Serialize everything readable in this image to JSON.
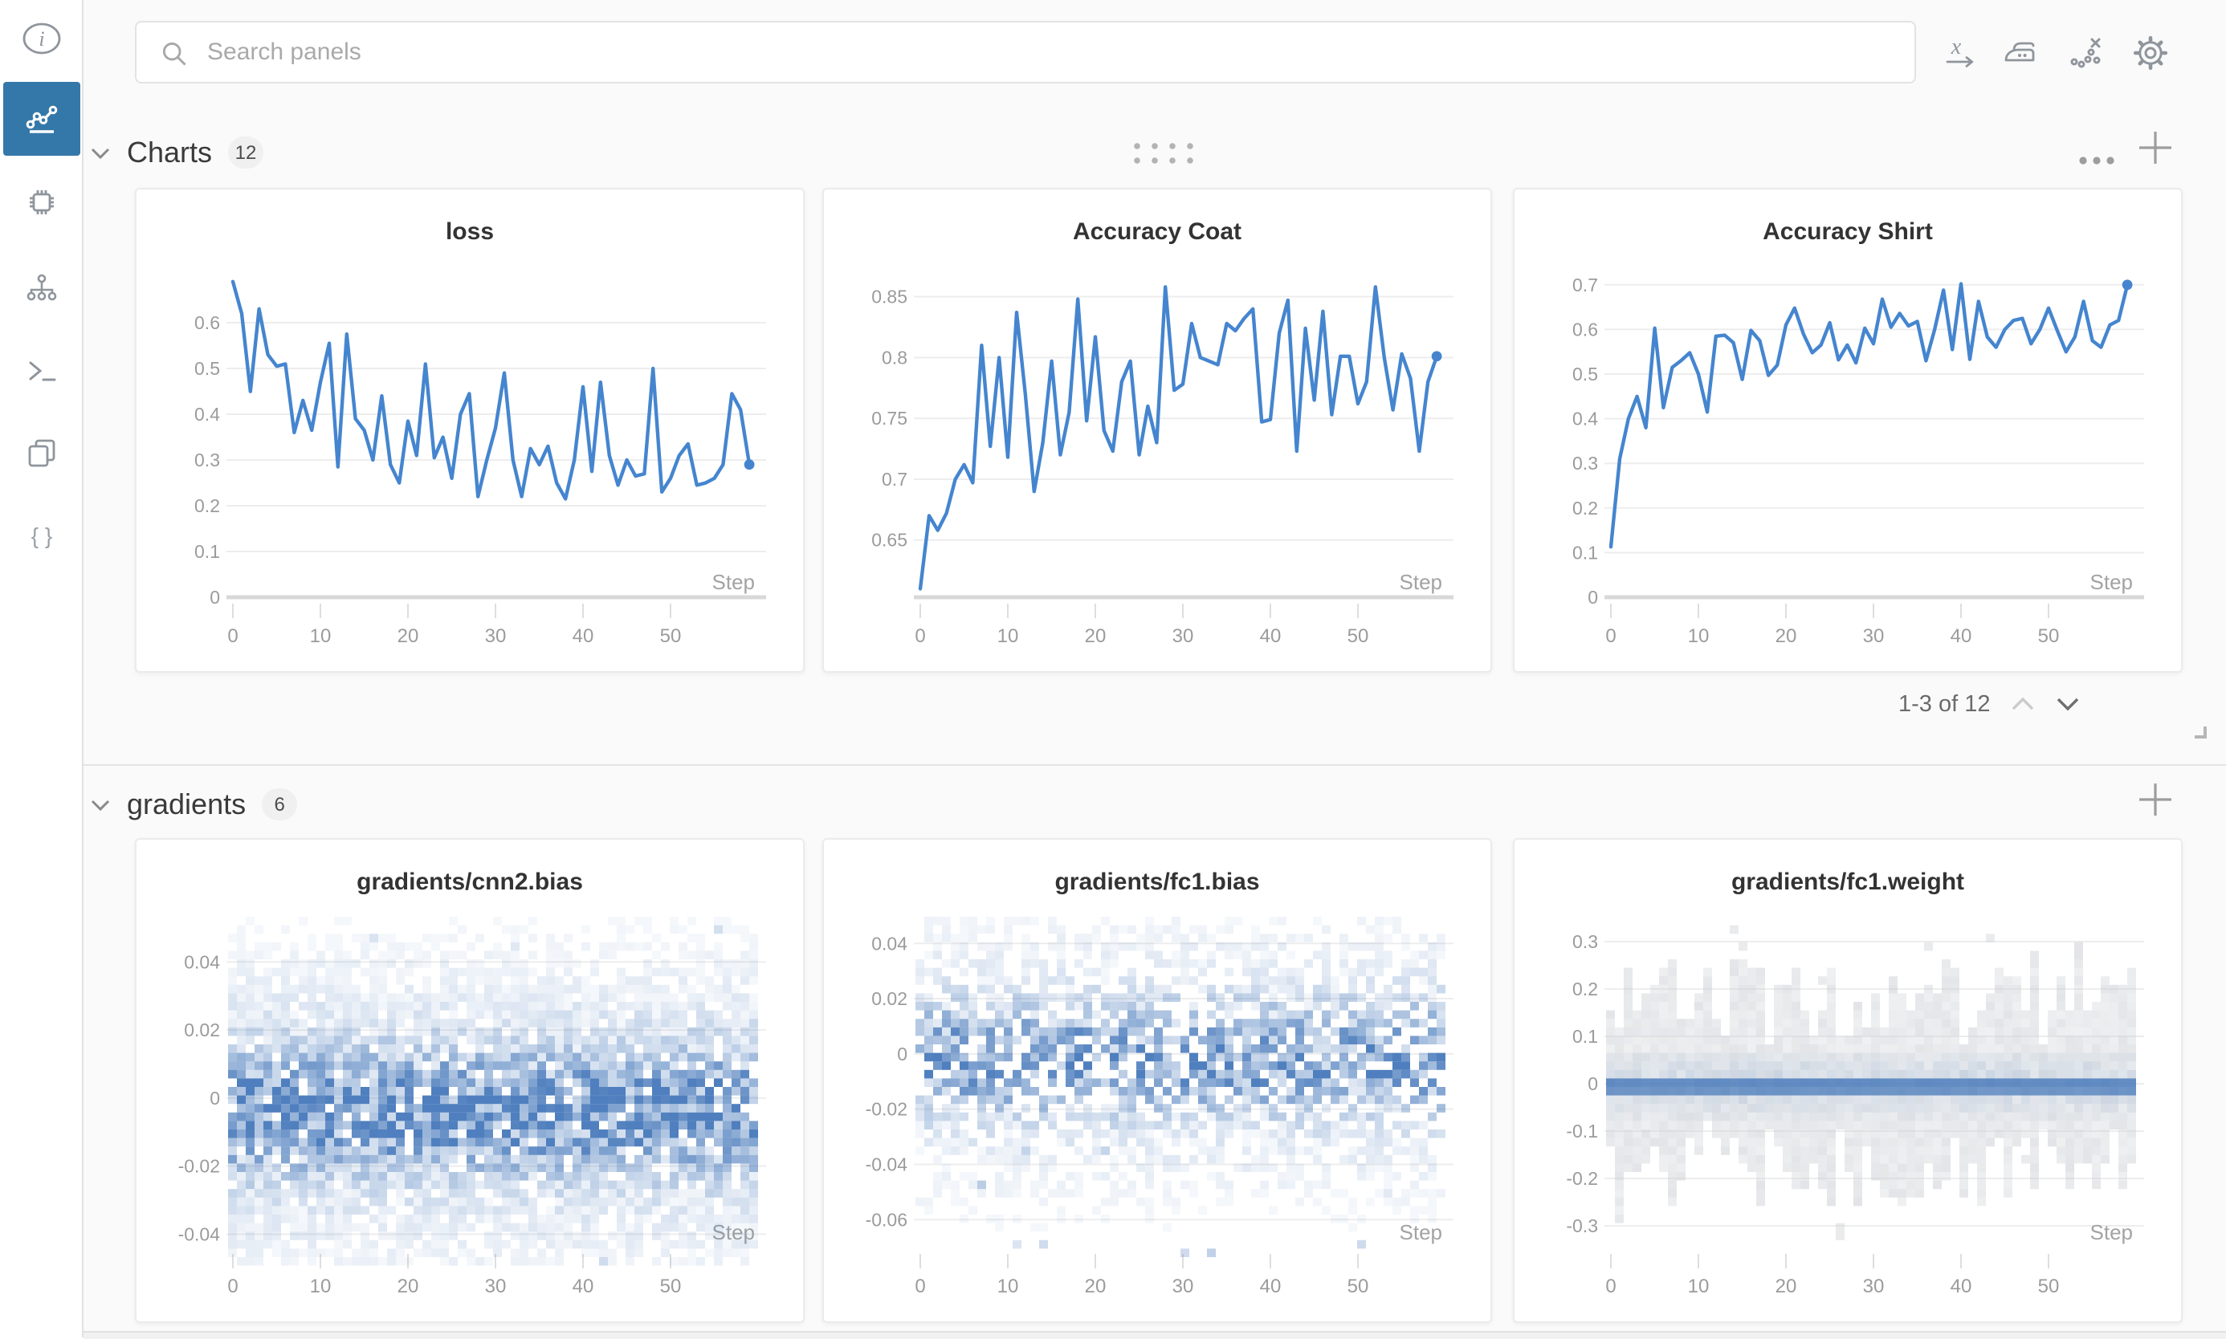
{
  "topbar": {
    "search_placeholder": "Search panels",
    "icons": [
      "x-axis-expression",
      "smoothing-iron",
      "remove-outliers-scatter",
      "settings-gear"
    ]
  },
  "sidebar": {
    "items": [
      "info",
      "charts",
      "system",
      "model",
      "logs",
      "files",
      "artifacts-json"
    ],
    "selected": "charts",
    "selected_color": "#3478a9"
  },
  "sections": [
    {
      "title": "Charts",
      "count": "12",
      "pagination": "1-3 of 12"
    },
    {
      "title": "gradients",
      "count": "6"
    }
  ],
  "colors": {
    "accent_line": "#4585cf",
    "heat_blue": "#4074b8"
  },
  "chart_data": [
    {
      "type": "line",
      "title": "loss",
      "xlabel": "Step",
      "x_ticks": [
        0,
        10,
        20,
        30,
        40,
        50
      ],
      "y_ticks": [
        0,
        0.1,
        0.2,
        0.3,
        0.4,
        0.5,
        0.6
      ],
      "ylim": [
        0,
        0.72
      ],
      "bottom_val": 0,
      "ppu": 285,
      "baseline": true,
      "values": [
        0.69,
        0.62,
        0.45,
        0.63,
        0.53,
        0.505,
        0.51,
        0.36,
        0.43,
        0.365,
        0.47,
        0.555,
        0.285,
        0.575,
        0.39,
        0.365,
        0.3,
        0.44,
        0.29,
        0.25,
        0.385,
        0.31,
        0.51,
        0.305,
        0.35,
        0.26,
        0.4,
        0.445,
        0.22,
        0.3,
        0.37,
        0.49,
        0.3,
        0.22,
        0.325,
        0.29,
        0.33,
        0.25,
        0.215,
        0.3,
        0.46,
        0.275,
        0.47,
        0.31,
        0.245,
        0.3,
        0.265,
        0.27,
        0.5,
        0.23,
        0.26,
        0.31,
        0.335,
        0.245,
        0.25,
        0.26,
        0.29,
        0.445,
        0.41,
        0.29
      ]
    },
    {
      "type": "line",
      "title": "Accuracy Coat",
      "xlabel": "Step",
      "x_ticks": [
        0,
        10,
        20,
        30,
        40,
        50
      ],
      "y_ticks": [
        0.65,
        0.7,
        0.75,
        0.8,
        0.85
      ],
      "ylim": [
        0.603,
        0.87
      ],
      "bottom_val": 0.603,
      "ppu": 758,
      "baseline": true,
      "values": [
        0.61,
        0.67,
        0.658,
        0.672,
        0.7,
        0.712,
        0.697,
        0.81,
        0.727,
        0.8,
        0.718,
        0.837,
        0.77,
        0.69,
        0.73,
        0.797,
        0.72,
        0.755,
        0.848,
        0.748,
        0.817,
        0.74,
        0.723,
        0.78,
        0.797,
        0.72,
        0.76,
        0.73,
        0.858,
        0.773,
        0.778,
        0.828,
        0.8,
        0.797,
        0.794,
        0.828,
        0.822,
        0.832,
        0.84,
        0.747,
        0.749,
        0.82,
        0.847,
        0.723,
        0.824,
        0.765,
        0.838,
        0.753,
        0.801,
        0.801,
        0.762,
        0.78,
        0.858,
        0.8,
        0.757,
        0.803,
        0.783,
        0.723,
        0.78,
        0.801
      ]
    },
    {
      "type": "line",
      "title": "Accuracy Shirt",
      "xlabel": "Step",
      "x_ticks": [
        0,
        10,
        20,
        30,
        40,
        50
      ],
      "y_ticks": [
        0,
        0.1,
        0.2,
        0.3,
        0.4,
        0.5,
        0.6,
        0.7
      ],
      "ylim": [
        0,
        0.73
      ],
      "bottom_val": 0,
      "ppu": 278,
      "baseline": true,
      "values": [
        0.113,
        0.31,
        0.4,
        0.45,
        0.38,
        0.603,
        0.425,
        0.515,
        0.53,
        0.548,
        0.5,
        0.415,
        0.585,
        0.587,
        0.57,
        0.488,
        0.598,
        0.575,
        0.497,
        0.52,
        0.61,
        0.648,
        0.59,
        0.548,
        0.565,
        0.615,
        0.532,
        0.565,
        0.525,
        0.603,
        0.568,
        0.668,
        0.605,
        0.636,
        0.608,
        0.618,
        0.53,
        0.6,
        0.688,
        0.555,
        0.702,
        0.533,
        0.663,
        0.583,
        0.56,
        0.6,
        0.62,
        0.625,
        0.568,
        0.6,
        0.648,
        0.598,
        0.55,
        0.583,
        0.663,
        0.575,
        0.56,
        0.61,
        0.62,
        0.7
      ]
    },
    {
      "type": "heatmap",
      "title": "gradients/cnn2.bias",
      "xlabel": "Step",
      "x_ticks": [
        0,
        10,
        20,
        30,
        40,
        50
      ],
      "y_ticks": [
        0.04,
        0.02,
        0,
        -0.02,
        -0.04
      ],
      "ylim": [
        -0.05,
        0.05
      ],
      "bottom_val": -0.0439,
      "ppu": 2120,
      "baseline": false,
      "gen": {
        "kind": "gauss",
        "seed": 7,
        "center": -0.004,
        "sigma": 0.011,
        "skip": 0.1,
        "gain": 1.0,
        "hi": 0.05,
        "lo": -0.052
      },
      "distribution_note": "dense gaussian band centered ~-0.004, spread ±0.02, sparse outliers to ±0.048"
    },
    {
      "type": "heatmap",
      "title": "gradients/fc1.bias",
      "xlabel": "Step",
      "x_ticks": [
        0,
        10,
        20,
        30,
        40,
        50
      ],
      "y_ticks": [
        0.04,
        0.02,
        0,
        -0.02,
        -0.04,
        -0.06
      ],
      "ylim": [
        -0.075,
        0.047
      ],
      "bottom_val": -0.0701,
      "ppu": 1720,
      "baseline": false,
      "gen": {
        "kind": "gauss",
        "seed": 13,
        "center": -0.002,
        "sigma": 0.012,
        "skip": 0.34,
        "gain": 0.85,
        "hi": 0.046,
        "lo": -0.075
      },
      "distribution_note": "sparser gaussian band centered ~0, spread ±0.025, outliers to -0.065"
    },
    {
      "type": "heatmap",
      "title": "gradients/fc1.weight",
      "xlabel": "Step",
      "x_ticks": [
        0,
        10,
        20,
        30,
        40,
        50
      ],
      "y_ticks": [
        0.3,
        0.2,
        0.1,
        0,
        -0.1,
        -0.2,
        -0.3
      ],
      "ylim": [
        -0.33,
        0.33
      ],
      "bottom_val": -0.3458,
      "ppu": 295,
      "baseline": false,
      "gen": {
        "kind": "gray",
        "seed": 21
      },
      "distribution_note": "solid blue band at 0±0.03 with light gray noise columns extending to ±0.27"
    }
  ]
}
